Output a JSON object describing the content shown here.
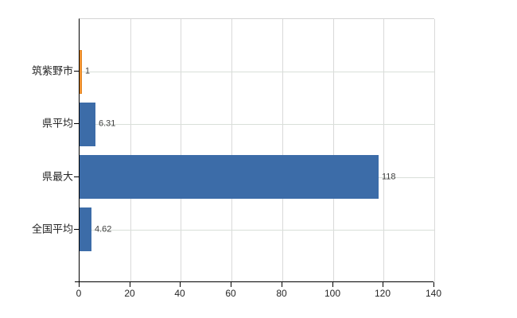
{
  "figure": {
    "background": "#ffffff"
  },
  "chart_data": {
    "type": "bar",
    "orientation": "horizontal",
    "title": "",
    "xlabel": "",
    "ylabel": "",
    "categories": [
      "筑紫野市",
      "県平均",
      "県最大",
      "全国平均"
    ],
    "values": [
      1,
      6.31,
      118,
      4.62
    ],
    "value_labels": [
      "1",
      "6.31",
      "118",
      "4.62"
    ],
    "bar_colors": [
      "#f89c3f",
      "#3c6ca8",
      "#3c6ca8",
      "#3c6ca8"
    ],
    "bar_border_colors": [
      "#e0821e",
      "#3c6ca8",
      "#3c6ca8",
      "#3c6ca8"
    ],
    "xlim": [
      0,
      140
    ],
    "x_ticks": [
      0,
      20,
      40,
      60,
      80,
      100,
      120,
      140
    ],
    "x_tick_labels": [
      "0",
      "20",
      "40",
      "60",
      "80",
      "100",
      "120",
      "140"
    ],
    "grid": true,
    "legend": null
  },
  "colors": {
    "axis": "#000000",
    "grid_vertical": "#d9d9d9",
    "grid_horizontal": "#d9dfd9",
    "plot_top_border": "#d4d4d4",
    "tick_text": "#262626",
    "value_text": "#3f3f3f",
    "bar_blue": "#3c6ca8",
    "bar_orange": "#f89c3f"
  }
}
